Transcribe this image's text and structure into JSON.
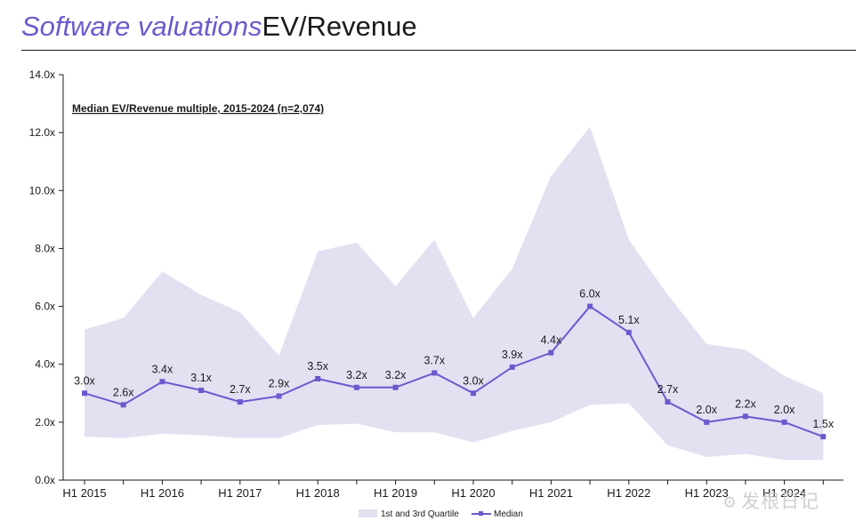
{
  "header": {
    "title_accent": "Software valuations",
    "title_main": "EV/Revenue"
  },
  "chart_data": {
    "type": "line",
    "title": "Median EV/Revenue multiple, 2015-2024 (n=2,074)",
    "xlabel": "",
    "ylabel": "",
    "x": [
      "H1 2015",
      "H2 2015",
      "H1 2016",
      "H2 2016",
      "H1 2017",
      "H2 2017",
      "H1 2018",
      "H2 2018",
      "H1 2019",
      "H2 2019",
      "H1 2020",
      "H2 2020",
      "H1 2021",
      "H2 2021",
      "H1 2022",
      "H2 2022",
      "H1 2023",
      "H2 2023",
      "H1 2024",
      "H2 2024"
    ],
    "x_tick_labels": [
      "H1 2015",
      "H1 2016",
      "H1 2017",
      "H1 2018",
      "H1 2019",
      "H1 2020",
      "H1 2021",
      "H1 2022",
      "H1 2023",
      "H1 2024"
    ],
    "ylim": [
      0,
      14
    ],
    "y_tick_labels": [
      "0.0x",
      "2.0x",
      "4.0x",
      "6.0x",
      "8.0x",
      "10.0x",
      "12.0x",
      "14.0x"
    ],
    "grid": false,
    "series": [
      {
        "name": "Median",
        "color": "#6a5acd",
        "values": [
          3.0,
          2.6,
          3.4,
          3.1,
          2.7,
          2.9,
          3.5,
          3.2,
          3.2,
          3.7,
          3.0,
          3.9,
          4.4,
          6.0,
          5.1,
          2.7,
          2.0,
          2.2,
          2.0,
          1.5
        ],
        "labels": [
          "3.0x",
          "2.6x",
          "3.4x",
          "3.1x",
          "2.7x",
          "2.9x",
          "3.5x",
          "3.2x",
          "3.2x",
          "3.7x",
          "3.0x",
          "3.9x",
          "4.4x",
          "6.0x",
          "5.1x",
          "2.7x",
          "2.0x",
          "2.2x",
          "2.0x",
          "1.5x"
        ]
      },
      {
        "name": "1st and 3rd Quartile",
        "type": "area-band",
        "color": "#e3e0f2",
        "upper": [
          5.2,
          5.6,
          7.2,
          6.4,
          5.8,
          4.3,
          7.9,
          8.2,
          6.7,
          8.3,
          5.6,
          7.3,
          10.5,
          12.2,
          8.3,
          6.4,
          4.7,
          4.5,
          3.6,
          3.0
        ],
        "lower": [
          1.5,
          1.45,
          1.6,
          1.55,
          1.45,
          1.45,
          1.9,
          1.95,
          1.65,
          1.65,
          1.3,
          1.7,
          2.0,
          2.6,
          2.65,
          1.2,
          0.8,
          0.9,
          0.7,
          0.7
        ]
      }
    ],
    "legend": {
      "position": "bottom-center",
      "entries": [
        "1st and 3rd Quartile",
        "Median"
      ]
    }
  },
  "watermark": {
    "text": "发根日记"
  }
}
